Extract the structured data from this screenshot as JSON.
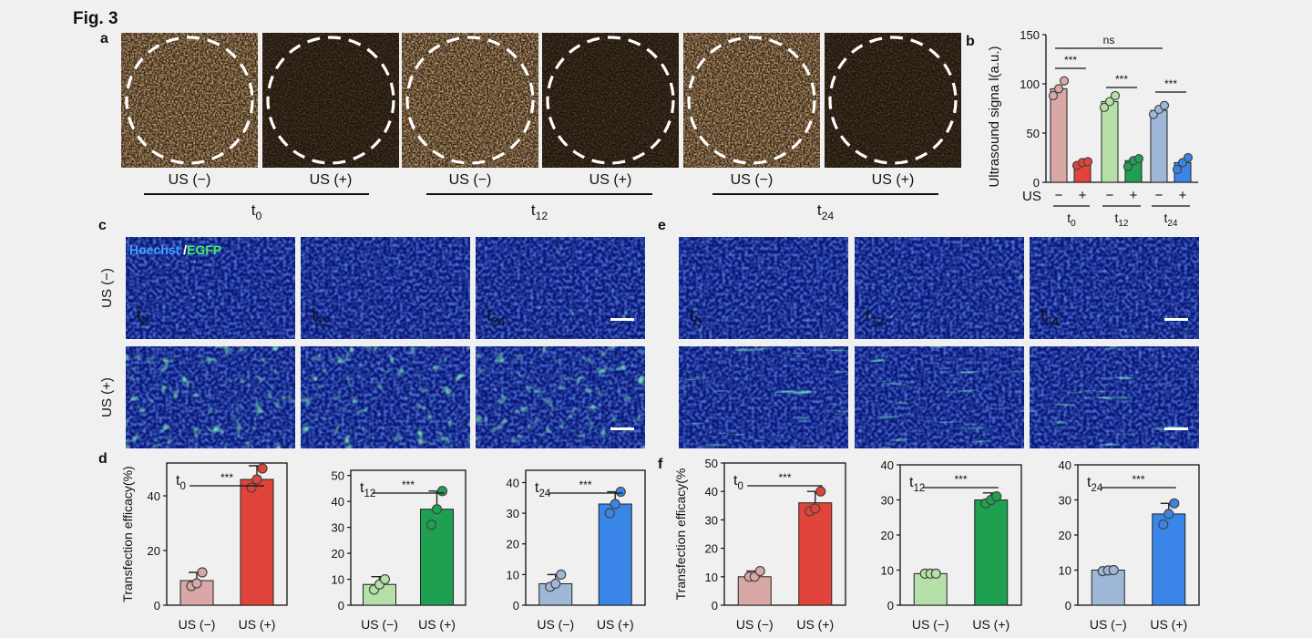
{
  "figure": {
    "title": "Fig. 3",
    "panel_labels": [
      "a",
      "b",
      "c",
      "d",
      "e",
      "f"
    ]
  },
  "panel_a": {
    "us_labels": [
      "US (−)",
      "US (+)"
    ],
    "groups": [
      "t0",
      "t12",
      "t24"
    ],
    "brightness": [
      "bright",
      "dark",
      "bright",
      "dark",
      "bright",
      "dark"
    ]
  },
  "panel_cd_images": {
    "stain_hoechst": "Hoechst",
    "stain_sep": " /",
    "stain_egfp": "EGFP",
    "row_labels": [
      "US (−)",
      "US (+)"
    ],
    "time_labels": [
      "t0",
      "t12",
      "t24"
    ]
  },
  "colors": {
    "t0_light": "#d9a8a6",
    "t0_dark": "#e0443a",
    "t12_light": "#b5e0a8",
    "t12_dark": "#1fa050",
    "t24_light": "#9fb8d8",
    "t24_dark": "#3a86e8",
    "nuclei": "#1a3fc8",
    "egfp": "#3fe060"
  },
  "chart_data": [
    {
      "id": "b",
      "type": "bar",
      "ylabel": "Ultrasound signa l(a.u.)",
      "ylim": [
        0,
        150
      ],
      "yticks": [
        0,
        50,
        100,
        150
      ],
      "x_row_label": "US",
      "categories": [
        "−",
        "+",
        "−",
        "+",
        "−",
        "+"
      ],
      "groups": [
        "t0",
        "t12",
        "t24"
      ],
      "values": [
        95,
        20,
        82,
        22,
        73,
        20
      ],
      "points": [
        [
          88,
          95,
          103
        ],
        [
          17,
          20,
          21
        ],
        [
          76,
          82,
          88
        ],
        [
          16,
          22,
          24
        ],
        [
          69,
          74,
          78
        ],
        [
          13,
          20,
          25
        ]
      ],
      "significance": [
        {
          "label": "ns",
          "from": 0,
          "to": 4
        },
        {
          "label": "***",
          "from": 0,
          "to": 1
        },
        {
          "label": "***",
          "from": 2,
          "to": 3
        },
        {
          "label": "***",
          "from": 4,
          "to": 5
        }
      ]
    },
    {
      "id": "d1",
      "type": "bar",
      "ylabel": "Transfection efficacy(%)",
      "ylim": [
        0,
        52
      ],
      "yticks": [
        0,
        20,
        40
      ],
      "time": "t0",
      "categories": [
        "US (−)",
        "US (+)"
      ],
      "values": [
        9,
        46
      ],
      "err": [
        3,
        5
      ],
      "points": [
        [
          7,
          8,
          12
        ],
        [
          43,
          46,
          50
        ]
      ],
      "sig": "***"
    },
    {
      "id": "d2",
      "type": "bar",
      "ylabel": "",
      "ylim": [
        0,
        52
      ],
      "yticks": [
        0,
        10,
        20,
        30,
        40,
        50
      ],
      "time": "t12",
      "categories": [
        "US (−)",
        "US (+)"
      ],
      "values": [
        8,
        37
      ],
      "err": [
        3,
        7
      ],
      "points": [
        [
          6,
          8,
          10
        ],
        [
          31,
          37,
          44
        ]
      ],
      "sig": "***"
    },
    {
      "id": "d3",
      "type": "bar",
      "ylabel": "",
      "ylim": [
        0,
        44
      ],
      "yticks": [
        0,
        10,
        20,
        30,
        40
      ],
      "time": "t24",
      "categories": [
        "US (−)",
        "US (+)"
      ],
      "values": [
        7,
        33
      ],
      "err": [
        3,
        4
      ],
      "points": [
        [
          6,
          7,
          10
        ],
        [
          30,
          33,
          37
        ]
      ],
      "sig": "***"
    },
    {
      "id": "f1",
      "type": "bar",
      "ylabel": "Transfection efficacy(%",
      "ylim": [
        0,
        50
      ],
      "yticks": [
        0,
        10,
        20,
        30,
        40,
        50
      ],
      "time": "t0",
      "categories": [
        "US (−)",
        "US (+)"
      ],
      "values": [
        10,
        36
      ],
      "err": [
        2,
        4
      ],
      "points": [
        [
          10,
          10,
          12
        ],
        [
          33,
          34,
          40
        ]
      ],
      "sig": "***"
    },
    {
      "id": "f2",
      "type": "bar",
      "ylabel": "",
      "ylim": [
        0,
        40
      ],
      "yticks": [
        0,
        10,
        20,
        30,
        40
      ],
      "time": "t12",
      "categories": [
        "US (−)",
        "US (+)"
      ],
      "values": [
        9,
        30
      ],
      "err": [
        1,
        2
      ],
      "points": [
        [
          9,
          9,
          9
        ],
        [
          29,
          30,
          31
        ]
      ],
      "sig": "***"
    },
    {
      "id": "f3",
      "type": "bar",
      "ylabel": "",
      "ylim": [
        0,
        40
      ],
      "yticks": [
        0,
        10,
        20,
        30,
        40
      ],
      "time": "t24",
      "categories": [
        "US (−)",
        "US (+)"
      ],
      "values": [
        10,
        26
      ],
      "err": [
        0.5,
        3
      ],
      "points": [
        [
          9.7,
          9.9,
          10
        ],
        [
          23,
          26,
          29
        ]
      ],
      "sig": "***"
    }
  ]
}
